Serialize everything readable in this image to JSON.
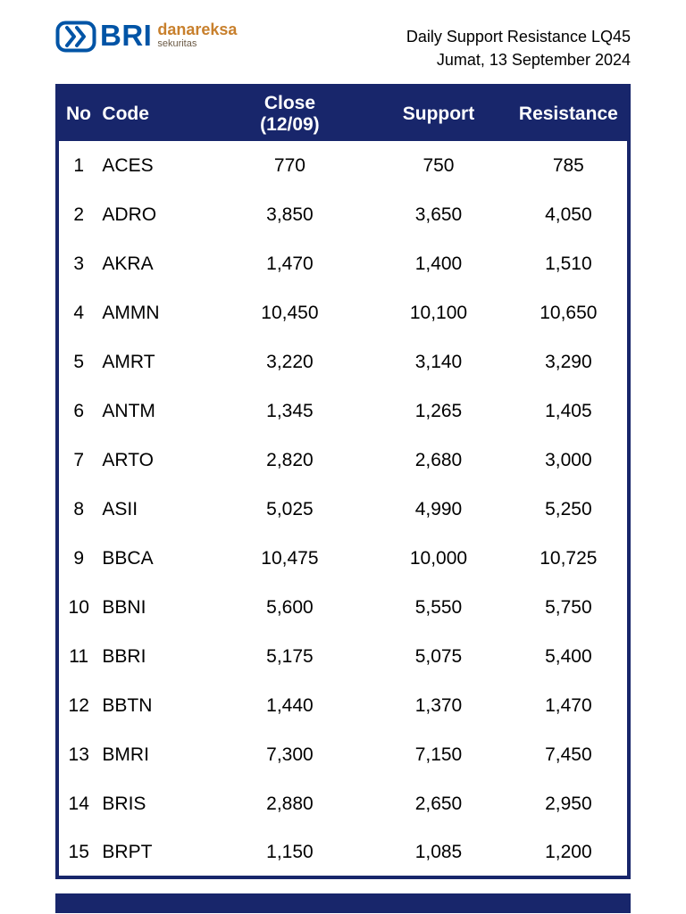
{
  "logo": {
    "bri": "BRI",
    "danareksa": "danareksa",
    "sekuritas": "sekuritas"
  },
  "header": {
    "title": "Daily Support Resistance LQ45",
    "date": "Jumat, 13 September 2024"
  },
  "colors": {
    "navy": "#18266b",
    "bri_blue": "#0054a6",
    "danareksa_orange": "#c8802d"
  },
  "table": {
    "headers": {
      "no": "No",
      "code": "Code",
      "close_line1": "Close",
      "close_line2": "(12/09)",
      "support": "Support",
      "resistance": "Resistance"
    },
    "rows": [
      {
        "no": "1",
        "code": "ACES",
        "close": "770",
        "support": "750",
        "resistance": "785"
      },
      {
        "no": "2",
        "code": "ADRO",
        "close": "3,850",
        "support": "3,650",
        "resistance": "4,050"
      },
      {
        "no": "3",
        "code": "AKRA",
        "close": "1,470",
        "support": "1,400",
        "resistance": "1,510"
      },
      {
        "no": "4",
        "code": "AMMN",
        "close": "10,450",
        "support": "10,100",
        "resistance": "10,650"
      },
      {
        "no": "5",
        "code": "AMRT",
        "close": "3,220",
        "support": "3,140",
        "resistance": "3,290"
      },
      {
        "no": "6",
        "code": "ANTM",
        "close": "1,345",
        "support": "1,265",
        "resistance": "1,405"
      },
      {
        "no": "7",
        "code": "ARTO",
        "close": "2,820",
        "support": "2,680",
        "resistance": "3,000"
      },
      {
        "no": "8",
        "code": "ASII",
        "close": "5,025",
        "support": "4,990",
        "resistance": "5,250"
      },
      {
        "no": "9",
        "code": "BBCA",
        "close": "10,475",
        "support": "10,000",
        "resistance": "10,725"
      },
      {
        "no": "10",
        "code": "BBNI",
        "close": "5,600",
        "support": "5,550",
        "resistance": "5,750"
      },
      {
        "no": "11",
        "code": "BBRI",
        "close": "5,175",
        "support": "5,075",
        "resistance": "5,400"
      },
      {
        "no": "12",
        "code": "BBTN",
        "close": "1,440",
        "support": "1,370",
        "resistance": "1,470"
      },
      {
        "no": "13",
        "code": "BMRI",
        "close": "7,300",
        "support": "7,150",
        "resistance": "7,450"
      },
      {
        "no": "14",
        "code": "BRIS",
        "close": "2,880",
        "support": "2,650",
        "resistance": "2,950"
      },
      {
        "no": "15",
        "code": "BRPT",
        "close": "1,150",
        "support": "1,085",
        "resistance": "1,200"
      }
    ]
  }
}
